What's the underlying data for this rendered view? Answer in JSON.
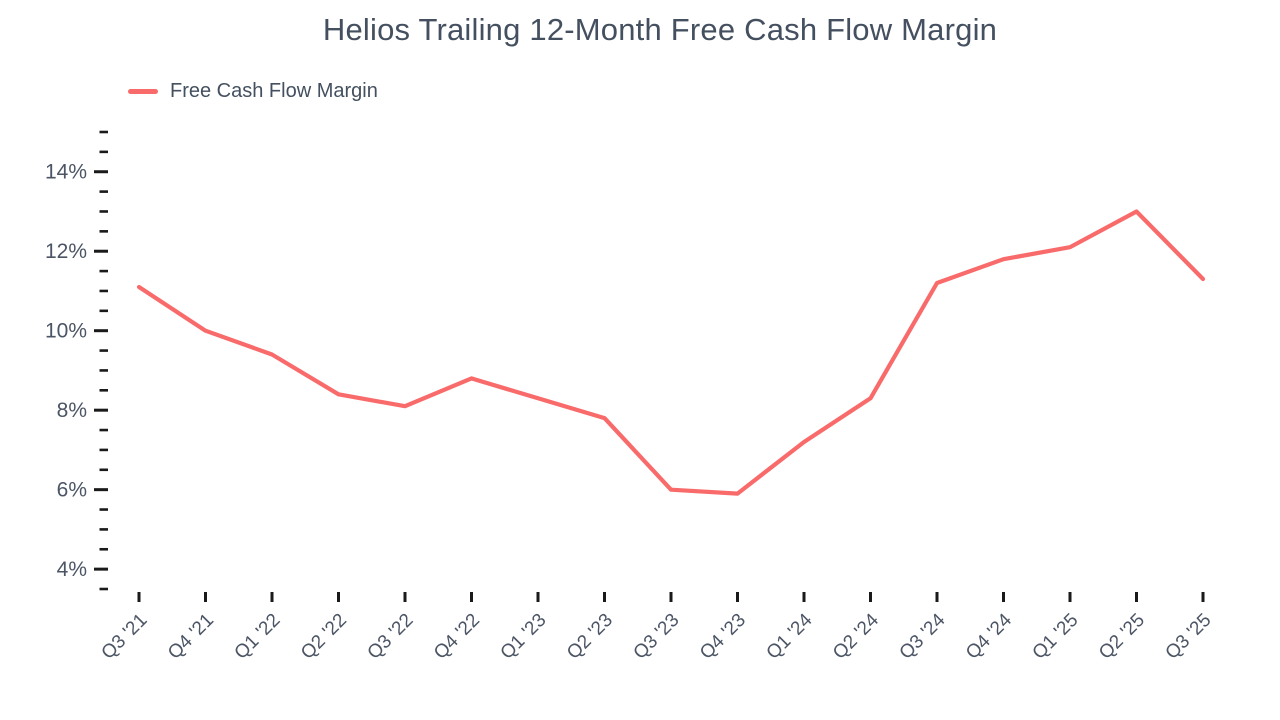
{
  "chart_data": {
    "type": "line",
    "title": "Helios Trailing 12-Month Free Cash Flow Margin",
    "legend_position": "top-left",
    "grid": false,
    "categories": [
      "Q3 '21",
      "Q4 '21",
      "Q1 '22",
      "Q2 '22",
      "Q3 '22",
      "Q4 '22",
      "Q1 '23",
      "Q2 '23",
      "Q3 '23",
      "Q4 '23",
      "Q1 '24",
      "Q2 '24",
      "Q3 '24",
      "Q4 '24",
      "Q1 '25",
      "Q2 '25",
      "Q3 '25"
    ],
    "series": [
      {
        "name": "Free Cash Flow Margin",
        "color": "#f96b6b",
        "values": [
          11.1,
          10.0,
          9.4,
          8.4,
          8.1,
          8.8,
          8.3,
          7.8,
          6.0,
          5.9,
          7.2,
          8.3,
          11.2,
          11.8,
          12.1,
          13.0,
          11.3
        ]
      }
    ],
    "xlabel": "",
    "ylabel": "",
    "y_axis": {
      "min": 3.5,
      "max": 15.0,
      "major_ticks": [
        4,
        6,
        8,
        10,
        12,
        14
      ],
      "minor_tick_step": 0.5,
      "unit_suffix": "%"
    },
    "style": {
      "line_color": "#f96b6b",
      "text_color": "#44505f",
      "axis_label_color": "#4c5565",
      "tick_color": "#1a1a1a",
      "background_color": "#ffffff"
    }
  }
}
